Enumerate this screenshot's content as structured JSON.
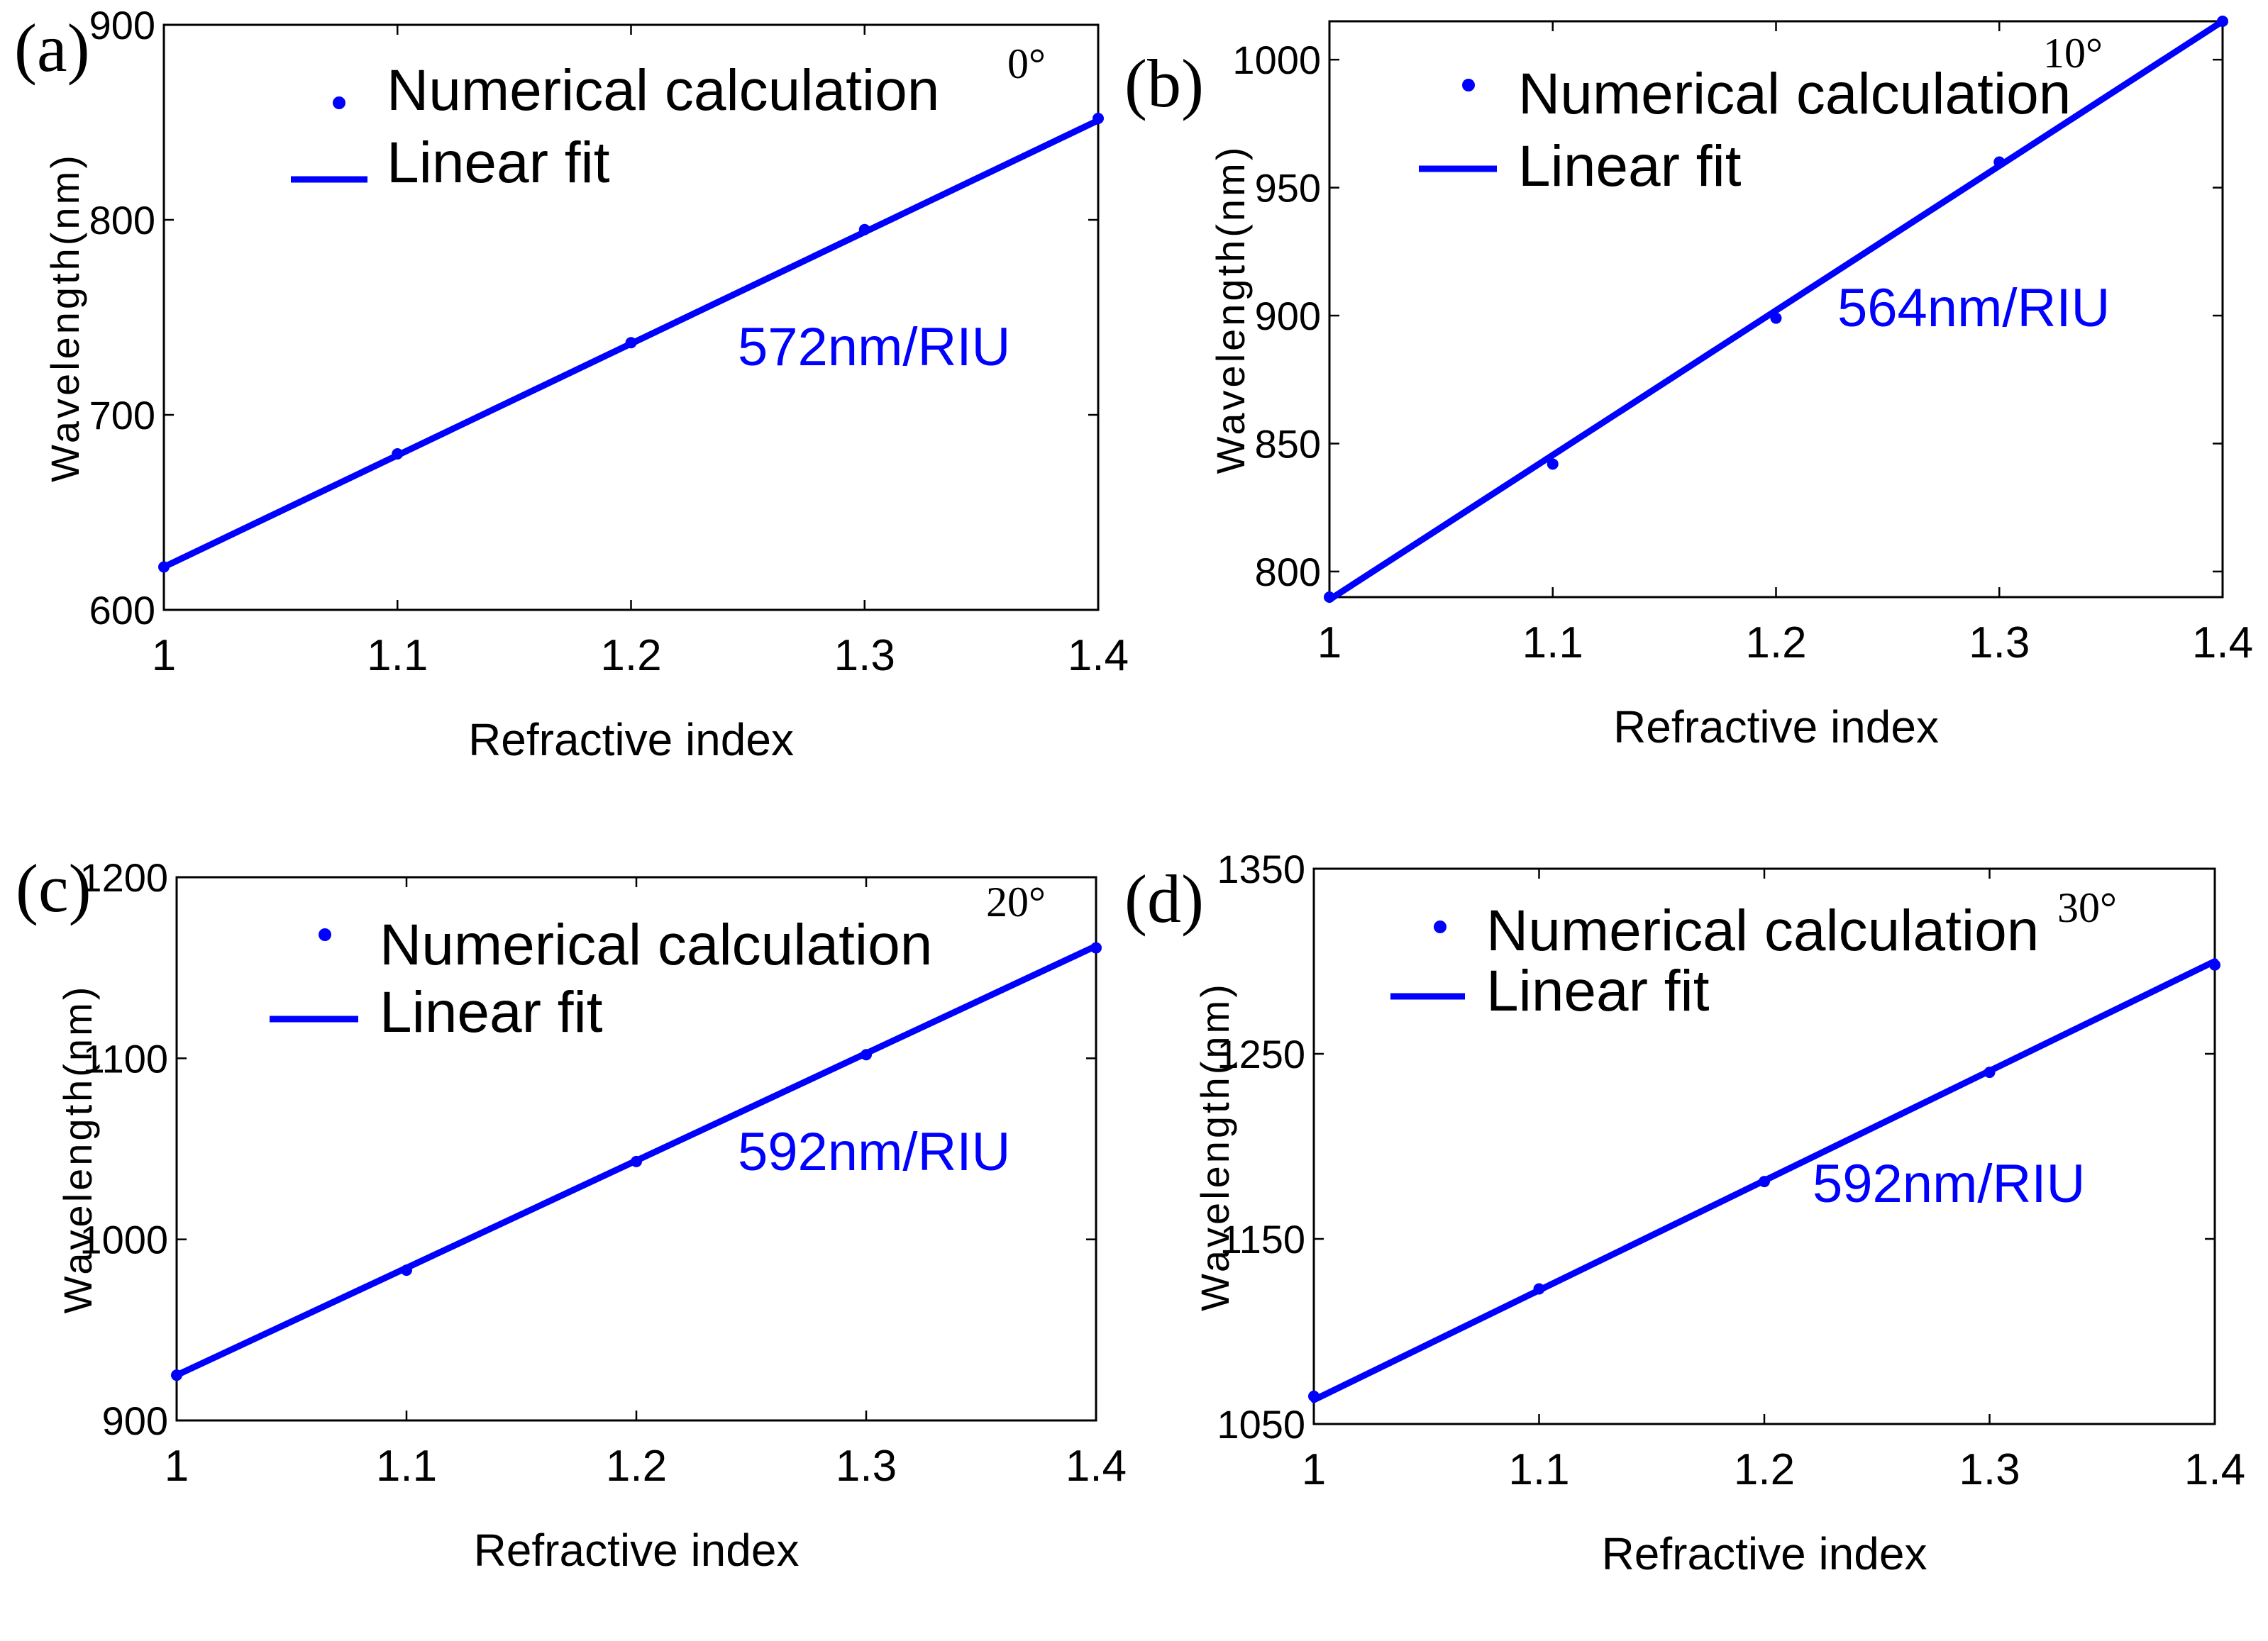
{
  "colors": {
    "series": "#0000ff",
    "axis": "#000000",
    "background": "#ffffff"
  },
  "chart_data": [
    {
      "type": "line",
      "panel_label": "(a)",
      "angle_label": "0°",
      "xlabel": "Refractive index",
      "ylabel": "Wavelength(nm)",
      "xlim": [
        1,
        1.4
      ],
      "ylim": [
        600,
        900
      ],
      "xticks": [
        1,
        1.1,
        1.2,
        1.3,
        1.4
      ],
      "xtick_labels": [
        "1",
        "1.1",
        "1.2",
        "1.3",
        "1.4"
      ],
      "yticks": [
        600,
        700,
        800,
        900
      ],
      "ytick_labels": [
        "600",
        "700",
        "800",
        "900"
      ],
      "legend": [
        "Numerical calculation",
        "Linear fit"
      ],
      "annotation": "572nm/RIU",
      "series": [
        {
          "name": "Numerical calculation",
          "style": "markers",
          "x": [
            1,
            1.1,
            1.2,
            1.3,
            1.4
          ],
          "y": [
            622,
            680,
            737,
            795,
            852
          ]
        },
        {
          "name": "Linear fit",
          "style": "line",
          "x": [
            1,
            1.4
          ],
          "y": [
            622,
            851
          ]
        }
      ]
    },
    {
      "type": "line",
      "panel_label": "(b)",
      "angle_label": "10°",
      "xlabel": "Refractive index",
      "ylabel": "Wavelength(nm)",
      "xlim": [
        1,
        1.4
      ],
      "ylim": [
        790,
        1015
      ],
      "xticks": [
        1,
        1.1,
        1.2,
        1.3,
        1.4
      ],
      "xtick_labels": [
        "1",
        "1.1",
        "1.2",
        "1.3",
        "1.4"
      ],
      "yticks": [
        800,
        850,
        900,
        950,
        1000
      ],
      "ytick_labels": [
        "800",
        "850",
        "900",
        "950",
        "1000"
      ],
      "legend": [
        "Numerical calculation",
        "Linear fit"
      ],
      "annotation": "564nm/RIU",
      "series": [
        {
          "name": "Numerical calculation",
          "style": "markers",
          "x": [
            1,
            1.1,
            1.2,
            1.3,
            1.4
          ],
          "y": [
            790,
            842,
            899,
            960,
            1015
          ]
        },
        {
          "name": "Linear fit",
          "style": "line",
          "x": [
            1,
            1.4
          ],
          "y": [
            789,
            1015
          ]
        }
      ]
    },
    {
      "type": "line",
      "panel_label": "(c)",
      "angle_label": "20°",
      "xlabel": "Refractive index",
      "ylabel": "Wavelength(nm)",
      "xlim": [
        1,
        1.4
      ],
      "ylim": [
        900,
        1200
      ],
      "xticks": [
        1,
        1.1,
        1.2,
        1.3,
        1.4
      ],
      "xtick_labels": [
        "1",
        "1.1",
        "1.2",
        "1.3",
        "1.4"
      ],
      "yticks": [
        900,
        1000,
        1100,
        1200
      ],
      "ytick_labels": [
        "900",
        "1000",
        "1100",
        "1200"
      ],
      "legend": [
        "Numerical calculation",
        "Linear fit"
      ],
      "annotation": "592nm/RIU",
      "series": [
        {
          "name": "Numerical calculation",
          "style": "markers",
          "x": [
            1,
            1.1,
            1.2,
            1.3,
            1.4
          ],
          "y": [
            925,
            983,
            1043,
            1102,
            1161
          ]
        },
        {
          "name": "Linear fit",
          "style": "line",
          "x": [
            1,
            1.4
          ],
          "y": [
            925,
            1162
          ]
        }
      ]
    },
    {
      "type": "line",
      "panel_label": "(d)",
      "angle_label": "30°",
      "xlabel": "Refractive index",
      "ylabel": "Wavelength(nm)",
      "xlim": [
        1,
        1.4
      ],
      "ylim": [
        1050,
        1350
      ],
      "xticks": [
        1,
        1.1,
        1.2,
        1.3,
        1.4
      ],
      "xtick_labels": [
        "1",
        "1.1",
        "1.2",
        "1.3",
        "1.4"
      ],
      "yticks": [
        1050,
        1150,
        1250,
        1350
      ],
      "ytick_labels": [
        "1050",
        "1150",
        "1250",
        "1350"
      ],
      "legend": [
        "Numerical calculation",
        "Linear fit"
      ],
      "annotation": "592nm/RIU",
      "series": [
        {
          "name": "Numerical calculation",
          "style": "markers",
          "x": [
            1,
            1.1,
            1.2,
            1.3,
            1.4
          ],
          "y": [
            1065,
            1123,
            1181,
            1240,
            1298
          ]
        },
        {
          "name": "Linear fit",
          "style": "line",
          "x": [
            1,
            1.4
          ],
          "y": [
            1063,
            1300
          ]
        }
      ]
    }
  ]
}
